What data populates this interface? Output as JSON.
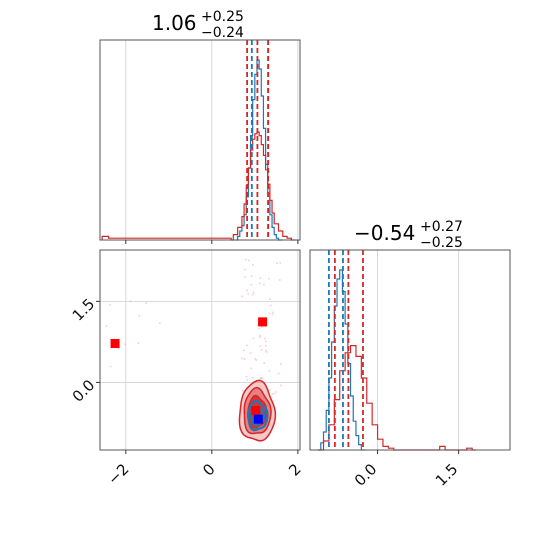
{
  "chart_data": {
    "type": "corner",
    "panels": [
      {
        "id": "hist_param1",
        "type": "histogram",
        "title": {
          "median": "1.06",
          "plus": "+0.25",
          "minus": "−0.24"
        },
        "xlim": [
          -2.6,
          2.05
        ],
        "xticks": [
          -2,
          0,
          2
        ],
        "show_tick_labels": false,
        "series": [
          {
            "color": "#1f77b4",
            "bins": [
              [
                0.55,
                0.0
              ],
              [
                0.6,
                0.02
              ],
              [
                0.65,
                0.05
              ],
              [
                0.7,
                0.08
              ],
              [
                0.75,
                0.14
              ],
              [
                0.8,
                0.24
              ],
              [
                0.85,
                0.4
              ],
              [
                0.9,
                0.58
              ],
              [
                0.95,
                0.78
              ],
              [
                1.0,
                0.92
              ],
              [
                1.05,
                1.0
              ],
              [
                1.1,
                0.95
              ],
              [
                1.15,
                0.8
              ],
              [
                1.2,
                0.62
              ],
              [
                1.25,
                0.42
              ],
              [
                1.3,
                0.26
              ],
              [
                1.35,
                0.14
              ],
              [
                1.4,
                0.07
              ],
              [
                1.45,
                0.03
              ],
              [
                1.5,
                0.01
              ],
              [
                1.55,
                0.0
              ]
            ],
            "quantiles": [
              0.93,
              1.31
            ]
          },
          {
            "color": "#d62728",
            "bins": [
              [
                -2.55,
                0.02
              ],
              [
                -2.4,
                0.01
              ],
              [
                0.45,
                0.0
              ],
              [
                0.5,
                0.03
              ],
              [
                0.6,
                0.07
              ],
              [
                0.7,
                0.13
              ],
              [
                0.75,
                0.2
              ],
              [
                0.8,
                0.3
              ],
              [
                0.85,
                0.4
              ],
              [
                0.9,
                0.5
              ],
              [
                0.95,
                0.56
              ],
              [
                1.0,
                0.59
              ],
              [
                1.05,
                0.6
              ],
              [
                1.1,
                0.58
              ],
              [
                1.15,
                0.53
              ],
              [
                1.2,
                0.47
              ],
              [
                1.25,
                0.39
              ],
              [
                1.3,
                0.31
              ],
              [
                1.35,
                0.22
              ],
              [
                1.4,
                0.15
              ],
              [
                1.45,
                0.09
              ],
              [
                1.55,
                0.05
              ],
              [
                1.65,
                0.02
              ],
              [
                1.75,
                0.01
              ],
              [
                1.85,
                0.0
              ]
            ],
            "quantiles": [
              0.82,
              1.06,
              1.31
            ]
          }
        ]
      },
      {
        "id": "hist_param2",
        "type": "histogram",
        "title": {
          "median": "−0.54",
          "plus": "+0.27",
          "minus": "−0.25"
        },
        "xlim": [
          -1.25,
          2.45
        ],
        "xticks": [
          0.0,
          1.5
        ],
        "xtick_labels": [
          "0.0",
          "1.5"
        ],
        "series": [
          {
            "color": "#1f77b4",
            "bins": [
              [
                -1.1,
                0.0
              ],
              [
                -1.05,
                0.04
              ],
              [
                -1.0,
                0.1
              ],
              [
                -0.95,
                0.22
              ],
              [
                -0.9,
                0.4
              ],
              [
                -0.85,
                0.6
              ],
              [
                -0.8,
                0.8
              ],
              [
                -0.75,
                0.95
              ],
              [
                -0.7,
                1.0
              ],
              [
                -0.65,
                0.88
              ],
              [
                -0.6,
                0.7
              ],
              [
                -0.55,
                0.48
              ],
              [
                -0.5,
                0.3
              ],
              [
                -0.45,
                0.16
              ],
              [
                -0.4,
                0.08
              ],
              [
                -0.35,
                0.03
              ],
              [
                -0.3,
                0.0
              ]
            ],
            "quantiles": [
              -0.9,
              -0.64
            ]
          },
          {
            "color": "#d62728",
            "bins": [
              [
                -1.1,
                0.0
              ],
              [
                -1.0,
                0.05
              ],
              [
                -0.9,
                0.14
              ],
              [
                -0.8,
                0.28
              ],
              [
                -0.7,
                0.44
              ],
              [
                -0.6,
                0.54
              ],
              [
                -0.5,
                0.58
              ],
              [
                -0.4,
                0.52
              ],
              [
                -0.3,
                0.4
              ],
              [
                -0.2,
                0.26
              ],
              [
                -0.1,
                0.14
              ],
              [
                0.0,
                0.06
              ],
              [
                0.1,
                0.02
              ],
              [
                0.2,
                0.01
              ],
              [
                0.3,
                0.0
              ],
              [
                1.15,
                0.02
              ],
              [
                1.25,
                0.0
              ],
              [
                1.65,
                0.01
              ],
              [
                1.75,
                0.0
              ]
            ],
            "quantiles": [
              -0.79,
              -0.54,
              -0.27
            ]
          }
        ]
      },
      {
        "id": "joint",
        "type": "contour",
        "xlim": [
          -2.6,
          2.05
        ],
        "ylim": [
          -1.25,
          2.45
        ],
        "xticks": [
          -2,
          0,
          2
        ],
        "xtick_labels": [
          "−2",
          "0",
          "2"
        ],
        "yticks": [
          0.0,
          1.5
        ],
        "ytick_labels": [
          "0.0",
          "1.5"
        ],
        "contours": [
          {
            "color": "#d62728",
            "center": [
              1.05,
              -0.55
            ],
            "radii": [
              [
                0.82,
                0.55
              ],
              [
                0.62,
                0.42
              ],
              [
                0.42,
                0.29
              ]
            ]
          },
          {
            "color": "#1f77b4",
            "center": [
              1.06,
              -0.62
            ],
            "radii": [
              [
                0.45,
                0.26
              ],
              [
                0.3,
                0.17
              ],
              [
                0.16,
                0.1
              ]
            ]
          }
        ],
        "markers": [
          {
            "color": "#ff0000",
            "x": -2.25,
            "y": 0.72
          },
          {
            "color": "#ff0000",
            "x": 1.18,
            "y": 1.12
          },
          {
            "color": "#ff0000",
            "x": 1.02,
            "y": -0.52
          },
          {
            "color": "#0000ff",
            "x": 1.08,
            "y": -0.68
          }
        ]
      }
    ]
  }
}
